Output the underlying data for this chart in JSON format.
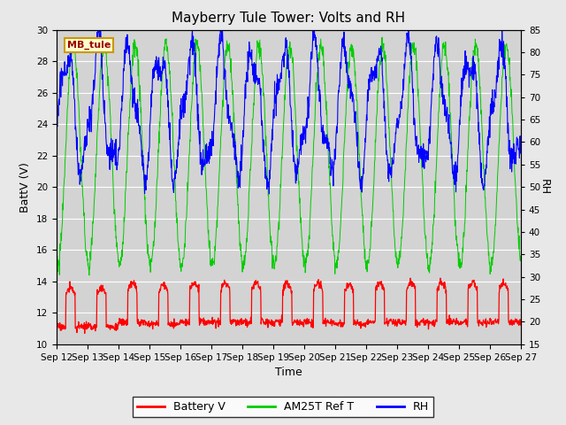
{
  "title": "Mayberry Tule Tower: Volts and RH",
  "xlabel": "Time",
  "ylabel_left": "BattV (V)",
  "ylabel_right": "RH",
  "label_box": "MB_tule",
  "ylim_left": [
    10,
    30
  ],
  "ylim_right": [
    15,
    85
  ],
  "yticks_left": [
    10,
    12,
    14,
    16,
    18,
    20,
    22,
    24,
    26,
    28,
    30
  ],
  "yticks_right": [
    15,
    20,
    25,
    30,
    35,
    40,
    45,
    50,
    55,
    60,
    65,
    70,
    75,
    80,
    85
  ],
  "xtick_labels": [
    "Sep 12",
    "Sep 13",
    "Sep 14",
    "Sep 15",
    "Sep 16",
    "Sep 17",
    "Sep 18",
    "Sep 19",
    "Sep 20",
    "Sep 21",
    "Sep 22",
    "Sep 23",
    "Sep 24",
    "Sep 25",
    "Sep 26",
    "Sep 27"
  ],
  "legend_labels": [
    "Battery V",
    "AM25T Ref T",
    "RH"
  ],
  "legend_colors": [
    "#ff0000",
    "#00cc00",
    "#0000ff"
  ],
  "fig_facecolor": "#e8e8e8",
  "plot_bg_color": "#d3d3d3",
  "grid_color": "#ffffff",
  "title_fontsize": 11,
  "axis_fontsize": 9,
  "tick_fontsize": 7.5
}
